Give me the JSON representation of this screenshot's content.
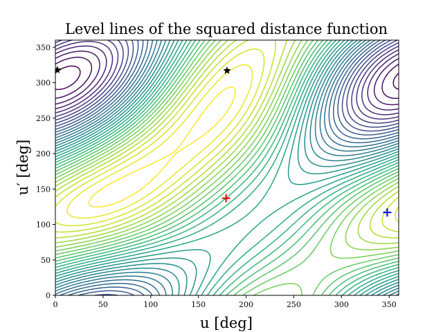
{
  "chart_data": {
    "type": "contour",
    "title": "Level lines of the squared distance function",
    "xlabel": "u [deg]",
    "ylabel": "u′ [deg]",
    "xlim": [
      0,
      360
    ],
    "ylim": [
      0,
      360
    ],
    "xticks": [
      0,
      50,
      100,
      150,
      200,
      250,
      300,
      350
    ],
    "yticks": [
      0,
      50,
      100,
      150,
      200,
      250,
      300,
      350
    ],
    "colormap": "viridis",
    "grid": false,
    "markers": [
      {
        "shape": "plus",
        "color": "#e00000",
        "x": 179,
        "y": 137
      },
      {
        "shape": "plus",
        "color": "#0000e0",
        "x": 348,
        "y": 117
      },
      {
        "shape": "star",
        "color": "#000000",
        "x": 180,
        "y": 317
      },
      {
        "shape": "star",
        "color": "#000000",
        "x": 2,
        "y": 318
      }
    ]
  }
}
